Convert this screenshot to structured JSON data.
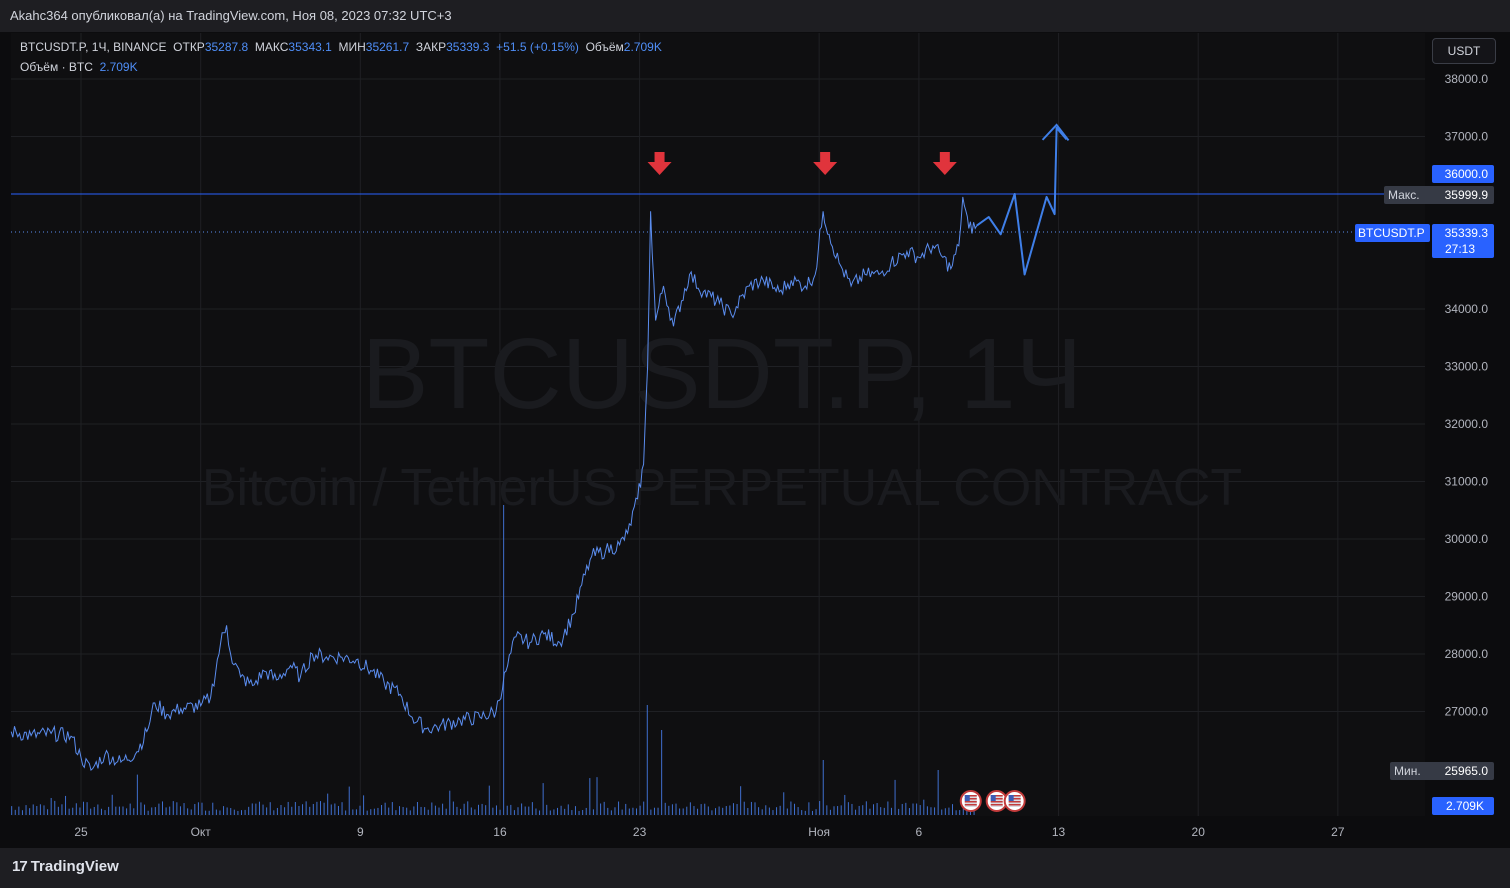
{
  "header": {
    "publisher_text": "Akahc364 опубликовал(а) на TradingView.com, Ноя 08, 2023 07:32 UTC+3"
  },
  "legend": {
    "symbol_line": "BTCUSDT.P, 1Ч, BINANCE",
    "open_label": "ОТКР",
    "open_value": "35287.8",
    "high_label": "МАКС",
    "high_value": "35343.1",
    "low_label": "МИН",
    "low_value": "35261.7",
    "close_label": "ЗАКР",
    "close_value": "35339.3",
    "change": "+51.5 (+0.15%)",
    "volume_label": "Объём",
    "volume_value": "2.709K",
    "volume_line_label": "Объём · BTC",
    "volume_line_value": "2.709K"
  },
  "currency_button": "USDT",
  "watermark": {
    "line1": "BTCUSDT.P, 1Ч",
    "line2": "Bitcoin / TetherUS PERPETUAL CONTRACT"
  },
  "price_tags": {
    "level_36000": "36000.0",
    "max_label": "Макс.",
    "max_value": "35999.9",
    "symbol_tag": "BTCUSDT.P",
    "last_price": "35339.3",
    "countdown": "27:13",
    "min_label": "Мин.",
    "min_value": "25965.0",
    "volume_tag": "2.709K"
  },
  "footer": {
    "brand": "TradingView",
    "logo_glyph": "17"
  },
  "colors": {
    "line": "#5b8def",
    "arrow": "#e0343c",
    "projection": "#3f7fe8",
    "volume": "#3f6fcf",
    "grid": "#1f2024",
    "tag_blue": "#2962ff",
    "tag_grey": "#363a45"
  },
  "chart_data": {
    "type": "line",
    "title": "BTCUSDT.P, 1Ч, BINANCE",
    "ylim": [
      25000,
      39000
    ],
    "y_ticks": [
      "38000.0",
      "37000.0",
      "36000.0",
      "34000.0",
      "33000.0",
      "32000.0",
      "31000.0",
      "30000.0",
      "29000.0",
      "28000.0",
      "27000.0"
    ],
    "x_ticks": [
      {
        "label": "25",
        "day": 0
      },
      {
        "label": "Окт",
        "day": 6
      },
      {
        "label": "9",
        "day": 14
      },
      {
        "label": "16",
        "day": 21
      },
      {
        "label": "23",
        "day": 28
      },
      {
        "label": "Ноя",
        "day": 37
      },
      {
        "label": "6",
        "day": 42
      },
      {
        "label": "13",
        "day": 49
      },
      {
        "label": "20",
        "day": 56
      },
      {
        "label": "27",
        "day": 63
      }
    ],
    "xlim_days": [
      -3.5,
      67.5
    ],
    "series": [
      {
        "points": [
          [
            -3.5,
            26650
          ],
          [
            -2.5,
            26580
          ],
          [
            -1.5,
            26620
          ],
          [
            -0.5,
            26570
          ],
          [
            0,
            26200
          ],
          [
            0.5,
            25980
          ],
          [
            1.2,
            26250
          ],
          [
            2,
            26120
          ],
          [
            2.8,
            26300
          ],
          [
            3.3,
            26650
          ],
          [
            3.7,
            27150
          ],
          [
            4.3,
            26950
          ],
          [
            5,
            27050
          ],
          [
            6,
            27100
          ],
          [
            6.5,
            27250
          ],
          [
            7,
            28200
          ],
          [
            7.3,
            28500
          ],
          [
            7.5,
            28000
          ],
          [
            8,
            27600
          ],
          [
            8.6,
            27450
          ],
          [
            9.2,
            27700
          ],
          [
            9.8,
            27550
          ],
          [
            10.5,
            27800
          ],
          [
            11,
            27600
          ],
          [
            11.6,
            28000
          ],
          [
            12.3,
            27950
          ],
          [
            13,
            27950
          ],
          [
            13.8,
            27900
          ],
          [
            14.6,
            27700
          ],
          [
            15.2,
            27500
          ],
          [
            16,
            27300
          ],
          [
            16.6,
            26900
          ],
          [
            17.3,
            26700
          ],
          [
            18,
            26750
          ],
          [
            19,
            26850
          ],
          [
            20,
            26900
          ],
          [
            20.8,
            27000
          ],
          [
            21.3,
            27700
          ],
          [
            21.8,
            28300
          ],
          [
            22.5,
            28200
          ],
          [
            23.2,
            28350
          ],
          [
            24,
            28200
          ],
          [
            24.7,
            28700
          ],
          [
            25.1,
            29200
          ],
          [
            25.6,
            29700
          ],
          [
            26.3,
            29800
          ],
          [
            27,
            29900
          ],
          [
            27.4,
            30100
          ],
          [
            27.9,
            30700
          ],
          [
            28.2,
            31300
          ],
          [
            28.4,
            33000
          ],
          [
            28.55,
            35700
          ],
          [
            28.8,
            33800
          ],
          [
            29.2,
            34400
          ],
          [
            29.7,
            33700
          ],
          [
            30.5,
            34600
          ],
          [
            31.2,
            34300
          ],
          [
            32,
            34100
          ],
          [
            32.6,
            33900
          ],
          [
            33.5,
            34400
          ],
          [
            34.2,
            34500
          ],
          [
            35,
            34300
          ],
          [
            35.6,
            34500
          ],
          [
            36.3,
            34400
          ],
          [
            36.8,
            34600
          ],
          [
            37.2,
            35700
          ],
          [
            37.5,
            35300
          ],
          [
            38,
            34800
          ],
          [
            38.6,
            34400
          ],
          [
            39.3,
            34600
          ],
          [
            40,
            34600
          ],
          [
            40.6,
            34800
          ],
          [
            41.4,
            35000
          ],
          [
            42,
            34900
          ],
          [
            42.7,
            35100
          ],
          [
            43.2,
            34900
          ],
          [
            43.6,
            34700
          ],
          [
            44,
            35100
          ],
          [
            44.2,
            35950
          ],
          [
            44.5,
            35400
          ],
          [
            44.9,
            35450
          ]
        ]
      }
    ],
    "annotations": {
      "arrows_down_days": [
        29.0,
        37.3,
        43.3
      ],
      "resistance_level": 36000,
      "last_price_level": 35339.3,
      "projection_path": [
        [
          44.9,
          35450
        ],
        [
          45.5,
          35600
        ],
        [
          46.1,
          35300
        ],
        [
          46.8,
          36000
        ],
        [
          47.3,
          34600
        ],
        [
          48.4,
          35950
        ],
        [
          48.8,
          35650
        ],
        [
          48.9,
          37150
        ],
        [
          49.4,
          36950
        ]
      ],
      "event_icons_days": [
        44.6,
        45.9,
        46.8
      ]
    }
  }
}
